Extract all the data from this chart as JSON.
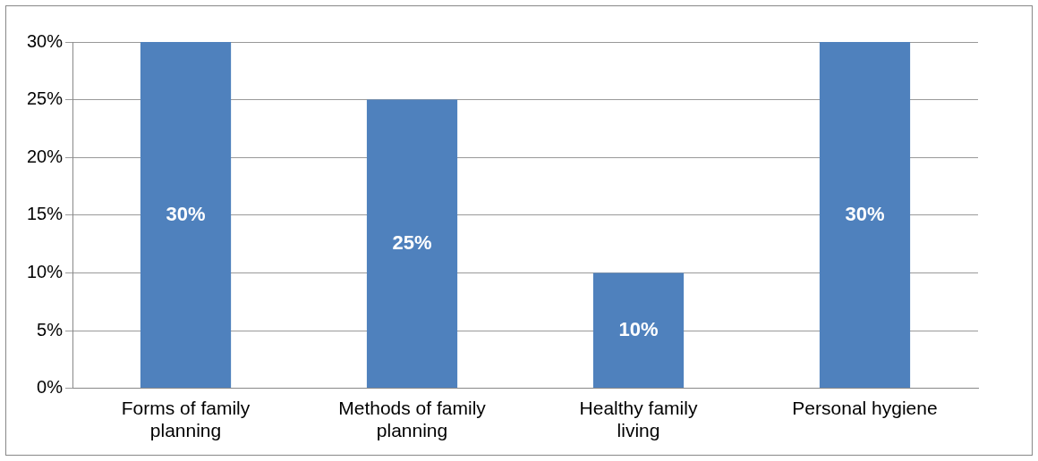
{
  "chart_data": {
    "type": "bar",
    "categories": [
      "Forms of family planning",
      "Methods of family planning",
      "Healthy family living",
      "Personal hygiene"
    ],
    "values": [
      30,
      25,
      10,
      30
    ],
    "color": "#4f81bd",
    "value_labels": [
      "30%",
      "25%",
      "10%",
      "30%"
    ],
    "ylim": [
      0,
      30
    ],
    "yticks": [
      {
        "value": 0,
        "label": "0%"
      },
      {
        "value": 5,
        "label": "5%"
      },
      {
        "value": 10,
        "label": "10%"
      },
      {
        "value": 15,
        "label": "15%"
      },
      {
        "value": 20,
        "label": "20%"
      },
      {
        "value": 25,
        "label": "25%"
      },
      {
        "value": 30,
        "label": "30%"
      }
    ],
    "grid": "y"
  }
}
